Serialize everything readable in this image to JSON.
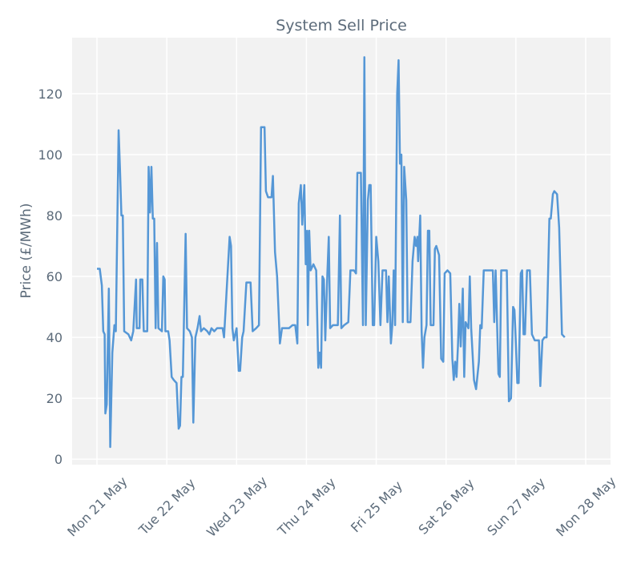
{
  "chart_data": {
    "type": "line",
    "title": "System Sell Price",
    "y_label": "Price (£/MWh)",
    "color": "#5597d6",
    "grid": true,
    "xlim": [
      -0.356,
      7.356
    ],
    "ylim": [
      -1.8,
      138.4
    ],
    "yticks": [
      0,
      20,
      40,
      60,
      80,
      100,
      120
    ],
    "xticks": [
      {
        "value": 0,
        "label": "Mon 21 May"
      },
      {
        "value": 1,
        "label": "Tue 22 May"
      },
      {
        "value": 2,
        "label": "Wed 23 May"
      },
      {
        "value": 3,
        "label": "Thu 24 May"
      },
      {
        "value": 4,
        "label": "Fri 25 May"
      },
      {
        "value": 5,
        "label": "Sat 26 May"
      },
      {
        "value": 6,
        "label": "Sun 27 May"
      },
      {
        "value": 7,
        "label": "Mon 28 May"
      }
    ],
    "x": [
      0,
      0.04,
      0.07,
      0.09,
      0.11,
      0.12,
      0.14,
      0.17,
      0.19,
      0.22,
      0.25,
      0.27,
      0.31,
      0.33,
      0.35,
      0.37,
      0.39,
      0.45,
      0.49,
      0.52,
      0.56,
      0.57,
      0.61,
      0.62,
      0.65,
      0.67,
      0.72,
      0.74,
      0.76,
      0.78,
      0.8,
      0.82,
      0.84,
      0.86,
      0.88,
      0.93,
      0.95,
      0.97,
      0.98,
      1.02,
      1.04,
      1.07,
      1.1,
      1.14,
      1.17,
      1.19,
      1.21,
      1.23,
      1.27,
      1.29,
      1.33,
      1.36,
      1.38,
      1.41,
      1.44,
      1.47,
      1.49,
      1.53,
      1.58,
      1.61,
      1.64,
      1.68,
      1.72,
      1.76,
      1.8,
      1.82,
      1.9,
      1.92,
      1.94,
      1.96,
      2.0,
      2.03,
      2.05,
      2.08,
      2.1,
      2.14,
      2.2,
      2.23,
      2.28,
      2.32,
      2.35,
      2.4,
      2.42,
      2.45,
      2.5,
      2.52,
      2.55,
      2.58,
      2.62,
      2.65,
      2.7,
      2.75,
      2.8,
      2.84,
      2.87,
      2.89,
      2.92,
      2.94,
      2.97,
      2.99,
      3.01,
      3.02,
      3.04,
      3.06,
      3.1,
      3.14,
      3.17,
      3.19,
      3.21,
      3.23,
      3.25,
      3.27,
      3.3,
      3.32,
      3.34,
      3.38,
      3.45,
      3.48,
      3.5,
      3.54,
      3.6,
      3.63,
      3.68,
      3.71,
      3.73,
      3.78,
      3.81,
      3.83,
      3.85,
      3.88,
      3.9,
      3.92,
      3.95,
      3.97,
      4.0,
      4.03,
      4.06,
      4.09,
      4.14,
      4.16,
      4.18,
      4.21,
      4.23,
      4.25,
      4.27,
      4.3,
      4.32,
      4.34,
      4.36,
      4.38,
      4.4,
      4.43,
      4.45,
      4.49,
      4.52,
      4.55,
      4.57,
      4.59,
      4.6,
      4.63,
      4.65,
      4.67,
      4.69,
      4.72,
      4.74,
      4.76,
      4.78,
      4.82,
      4.84,
      4.86,
      4.9,
      4.93,
      4.96,
      4.98,
      5.02,
      5.06,
      5.09,
      5.11,
      5.13,
      5.15,
      5.17,
      5.19,
      5.21,
      5.24,
      5.26,
      5.28,
      5.3,
      5.32,
      5.34,
      5.36,
      5.4,
      5.43,
      5.47,
      5.49,
      5.51,
      5.54,
      5.57,
      5.6,
      5.64,
      5.67,
      5.69,
      5.71,
      5.75,
      5.77,
      5.79,
      5.83,
      5.87,
      5.9,
      5.93,
      5.96,
      5.98,
      6.0,
      6.02,
      6.04,
      6.07,
      6.09,
      6.11,
      6.13,
      6.16,
      6.2,
      6.23,
      6.27,
      6.3,
      6.33,
      6.35,
      6.38,
      6.41,
      6.44,
      6.48,
      6.5,
      6.53,
      6.55,
      6.59,
      6.62,
      6.66,
      6.7
    ],
    "values": [
      62.5,
      62.5,
      57,
      42,
      41,
      15,
      18,
      56,
      4,
      35,
      44,
      42,
      108,
      95,
      80,
      80,
      42,
      41,
      39,
      42,
      59,
      43,
      43,
      59,
      59,
      42,
      42,
      96,
      81,
      96,
      79,
      79,
      43,
      71,
      43,
      42,
      60,
      59,
      42,
      42,
      39,
      27,
      26,
      25,
      10,
      11,
      27,
      27,
      74,
      43,
      42,
      40,
      12,
      40,
      43,
      47,
      42,
      43,
      42,
      41,
      43,
      42,
      43,
      43,
      43,
      40,
      73,
      70,
      43,
      39,
      43,
      29,
      29,
      40,
      42,
      58,
      58,
      42,
      43,
      44,
      109,
      109,
      88,
      86,
      86,
      93,
      68,
      60,
      38,
      43,
      43,
      43,
      44,
      44,
      38,
      84,
      90,
      77,
      90,
      64,
      75,
      44,
      75,
      62,
      64,
      62,
      30,
      35,
      30,
      60,
      59,
      39,
      61,
      73,
      43,
      44,
      44,
      80,
      43,
      44,
      45,
      62,
      62,
      61,
      94,
      94,
      44,
      132,
      44,
      85,
      90,
      90,
      44,
      44,
      73,
      65,
      44,
      62,
      62,
      45,
      60,
      38,
      44,
      62,
      44,
      120,
      131,
      97,
      100,
      45,
      96,
      85,
      45,
      45,
      65,
      73,
      70,
      73,
      65,
      80,
      42,
      30,
      40,
      44,
      75,
      75,
      44,
      44,
      69,
      70,
      67,
      33,
      32,
      61,
      62,
      61,
      33,
      26,
      32,
      27,
      37,
      51,
      37,
      56,
      27,
      45,
      44,
      43,
      60,
      43,
      26,
      23,
      32,
      44,
      43,
      62,
      62,
      62,
      62,
      62,
      45,
      62,
      28,
      27,
      62,
      62,
      62,
      19,
      20,
      50,
      49,
      38,
      25,
      25,
      61,
      62,
      41,
      41,
      62,
      62,
      41,
      39,
      39,
      39,
      24,
      39,
      40,
      40,
      79,
      79,
      87,
      88,
      87,
      76,
      41,
      40
    ]
  }
}
